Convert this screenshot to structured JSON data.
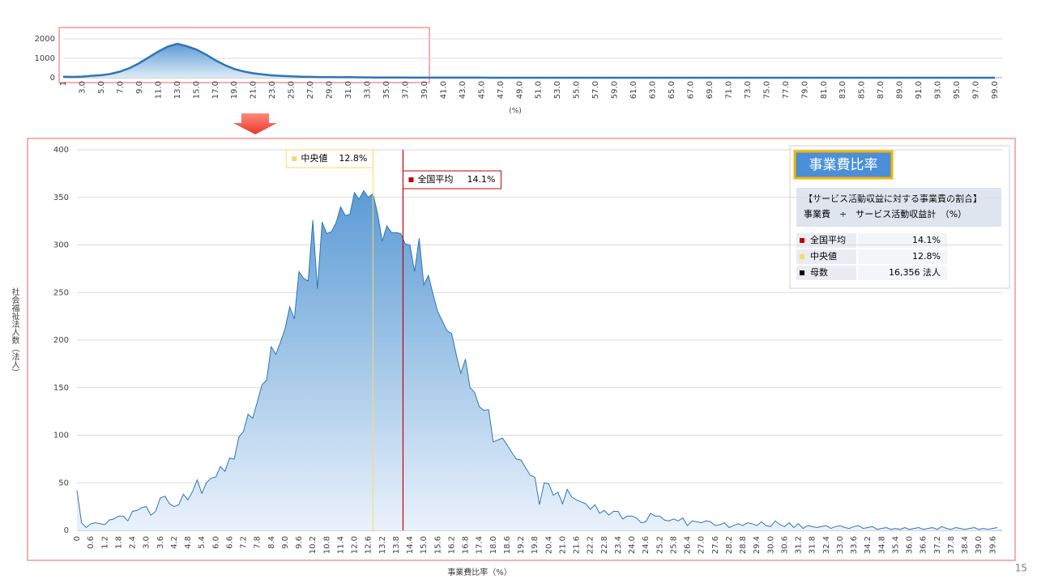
{
  "chart_data": [
    {
      "type": "area",
      "xlabel": "(%)",
      "categories": [
        "1",
        null,
        "3.0",
        null,
        "5.0",
        null,
        "7.0",
        null,
        "9.0",
        null,
        "11.0",
        null,
        "13.0",
        null,
        "15.0",
        null,
        "17.0",
        null,
        "19.0",
        null,
        "21.0",
        null,
        "23.0",
        null,
        "25.0",
        null,
        "27.0",
        null,
        "29.0",
        null,
        "31.0",
        null,
        "33.0",
        null,
        "35.0",
        null,
        "37.0",
        null,
        "39.0",
        null,
        "41.0",
        null,
        "43.0",
        null,
        "45.0",
        null,
        "47.0",
        null,
        "49.0",
        null,
        "51.0",
        null,
        "53.0",
        null,
        "55.0",
        null,
        "57.0",
        null,
        "59.0",
        null,
        "61.0",
        null,
        "63.0",
        null,
        "65.0",
        null,
        "67.0",
        null,
        "69.0",
        null,
        "71.0",
        null,
        "73.0",
        null,
        "75.0",
        null,
        "77.0",
        null,
        "79.0",
        null,
        "81.0",
        null,
        "83.0",
        null,
        "85.0",
        null,
        "87.0",
        null,
        "89.0",
        null,
        "91.0",
        null,
        "93.0",
        null,
        "95.0",
        null,
        "97.0",
        null,
        "99.0"
      ],
      "values": [
        50,
        40,
        60,
        100,
        130,
        200,
        320,
        500,
        750,
        1050,
        1350,
        1600,
        1750,
        1620,
        1450,
        1200,
        900,
        650,
        450,
        320,
        230,
        170,
        120,
        90,
        70,
        55,
        45,
        35,
        30,
        25,
        30,
        20,
        15,
        12,
        10,
        8,
        7,
        6,
        5,
        5,
        4,
        4,
        3,
        3,
        3,
        2,
        2,
        2,
        2,
        1,
        1,
        1,
        1,
        1,
        1,
        1,
        1,
        1,
        1,
        1,
        1,
        1,
        1,
        1,
        1,
        1,
        1,
        1,
        1,
        1,
        1,
        1,
        1,
        1,
        1,
        1,
        1,
        1,
        1,
        1,
        1,
        1,
        1,
        1,
        1,
        1,
        1,
        1,
        1,
        1,
        1,
        1,
        1,
        1,
        1,
        1,
        1,
        1,
        1
      ],
      "color": "#2e75b6",
      "ylim": [
        0,
        2000
      ],
      "yticks": [
        0,
        1000,
        2000
      ],
      "grid": true
    },
    {
      "type": "area",
      "xlabel": "事業費比率（%）",
      "ylabel": "社会福祉法人数（法人）",
      "categories": [
        "0",
        null,
        null,
        "0.6",
        null,
        null,
        "1.2",
        null,
        null,
        "1.8",
        null,
        null,
        "2.4",
        null,
        null,
        "3.0",
        null,
        null,
        "3.6",
        null,
        null,
        "4.2",
        null,
        null,
        "4.8",
        null,
        null,
        "5.4",
        null,
        null,
        "6.0",
        null,
        null,
        "6.6",
        null,
        null,
        "7.2",
        null,
        null,
        "7.8",
        null,
        null,
        "8.4",
        null,
        null,
        "9.0",
        null,
        null,
        "9.6",
        null,
        null,
        "10.2",
        null,
        null,
        "10.8",
        null,
        null,
        "11.4",
        null,
        null,
        "12.0",
        null,
        null,
        "12.6",
        null,
        null,
        "13.2",
        null,
        null,
        "13.8",
        null,
        null,
        "14.4",
        null,
        null,
        "15.0",
        null,
        null,
        "15.6",
        null,
        null,
        "16.2",
        null,
        null,
        "16.8",
        null,
        null,
        "17.4",
        null,
        null,
        "18.0",
        null,
        null,
        "18.6",
        null,
        null,
        "19.2",
        null,
        null,
        "19.8",
        null,
        null,
        "20.4",
        null,
        null,
        "21.0",
        null,
        null,
        "21.6",
        null,
        null,
        "22.2",
        null,
        null,
        "22.8",
        null,
        null,
        "23.4",
        null,
        null,
        "24.0",
        null,
        null,
        "24.6",
        null,
        null,
        "25.2",
        null,
        null,
        "25.8",
        null,
        null,
        "26.4",
        null,
        null,
        "27.0",
        null,
        null,
        "27.6",
        null,
        null,
        "28.2",
        null,
        null,
        "28.8",
        null,
        null,
        "29.4",
        null,
        null,
        "30.0",
        null,
        null,
        "30.6",
        null,
        null,
        "31.2",
        null,
        null,
        "31.8",
        null,
        null,
        "32.4",
        null,
        null,
        "33.0",
        null,
        null,
        "33.6",
        null,
        null,
        "34.2",
        null,
        null,
        "34.8",
        null,
        null,
        "35.4",
        null,
        null,
        "36.0",
        null,
        null,
        "36.6",
        null,
        null,
        "37.2",
        null,
        null,
        "37.8",
        null,
        null,
        "38.4",
        null,
        null,
        "39.0",
        null,
        null,
        "39.6",
        null
      ],
      "values": [
        42,
        8,
        3,
        7,
        8,
        7,
        6,
        11,
        12,
        15,
        15,
        10,
        20,
        21,
        24,
        25,
        16,
        20,
        34,
        36,
        28,
        25,
        27,
        38,
        32,
        41,
        53,
        39,
        50,
        55,
        56,
        67,
        62,
        76,
        75,
        98,
        104,
        122,
        118,
        135,
        153,
        158,
        193,
        185,
        198,
        212,
        235,
        222,
        272,
        265,
        262,
        326,
        254,
        324,
        312,
        314,
        323,
        340,
        331,
        332,
        355,
        348,
        357,
        350,
        354,
        333,
        304,
        320,
        313,
        313,
        312,
        301,
        300,
        272,
        307,
        258,
        268,
        248,
        230,
        220,
        210,
        207,
        185,
        165,
        180,
        150,
        145,
        130,
        126,
        127,
        93,
        95,
        97,
        90,
        82,
        75,
        74,
        66,
        58,
        56,
        27,
        50,
        49,
        37,
        40,
        28,
        43,
        35,
        32,
        30,
        28,
        22,
        27,
        18,
        21,
        16,
        20,
        20,
        12,
        15,
        15,
        13,
        8,
        9,
        18,
        15,
        15,
        11,
        10,
        12,
        10,
        13,
        5,
        10,
        9,
        8,
        10,
        9,
        5,
        6,
        8,
        3,
        5,
        7,
        5,
        8,
        7,
        5,
        9,
        5,
        4,
        10,
        6,
        4,
        8,
        3,
        7,
        2,
        5,
        4,
        3,
        4,
        5,
        2,
        4,
        5,
        3,
        2,
        4,
        5,
        2,
        3,
        4,
        1,
        2,
        3,
        1,
        2,
        1,
        3,
        1,
        2,
        3,
        1,
        2,
        3,
        1,
        4,
        2,
        1,
        3,
        2,
        1,
        2,
        3,
        1,
        2,
        1,
        2,
        3
      ],
      "color": "#2e75b6",
      "xlim": [
        0,
        39.8
      ],
      "ylim": [
        0,
        400
      ],
      "yticks": [
        0,
        50,
        100,
        150,
        200,
        250,
        300,
        350,
        400
      ],
      "grid": true,
      "markers": [
        {
          "label": "中央値",
          "value": 12.8,
          "value_label": "12.8%",
          "color": "#ffd966"
        },
        {
          "label": "全国平均",
          "value": 14.1,
          "value_label": "14.1%",
          "color": "#c00000"
        }
      ]
    }
  ],
  "info_box": {
    "title": "事業費比率",
    "formula": [
      "【サービス活動収益に対する事業費の割合】",
      "事業費　÷　サービス活動収益計　（%）"
    ],
    "rows": [
      {
        "label": "全国平均",
        "value": "14.1%",
        "color": "#c00000"
      },
      {
        "label": "中央値",
        "value": "12.8%",
        "color": "#ffd966"
      },
      {
        "label": "母数",
        "value": "16,356 法人",
        "color": "#000000"
      }
    ]
  },
  "page_number": "15"
}
